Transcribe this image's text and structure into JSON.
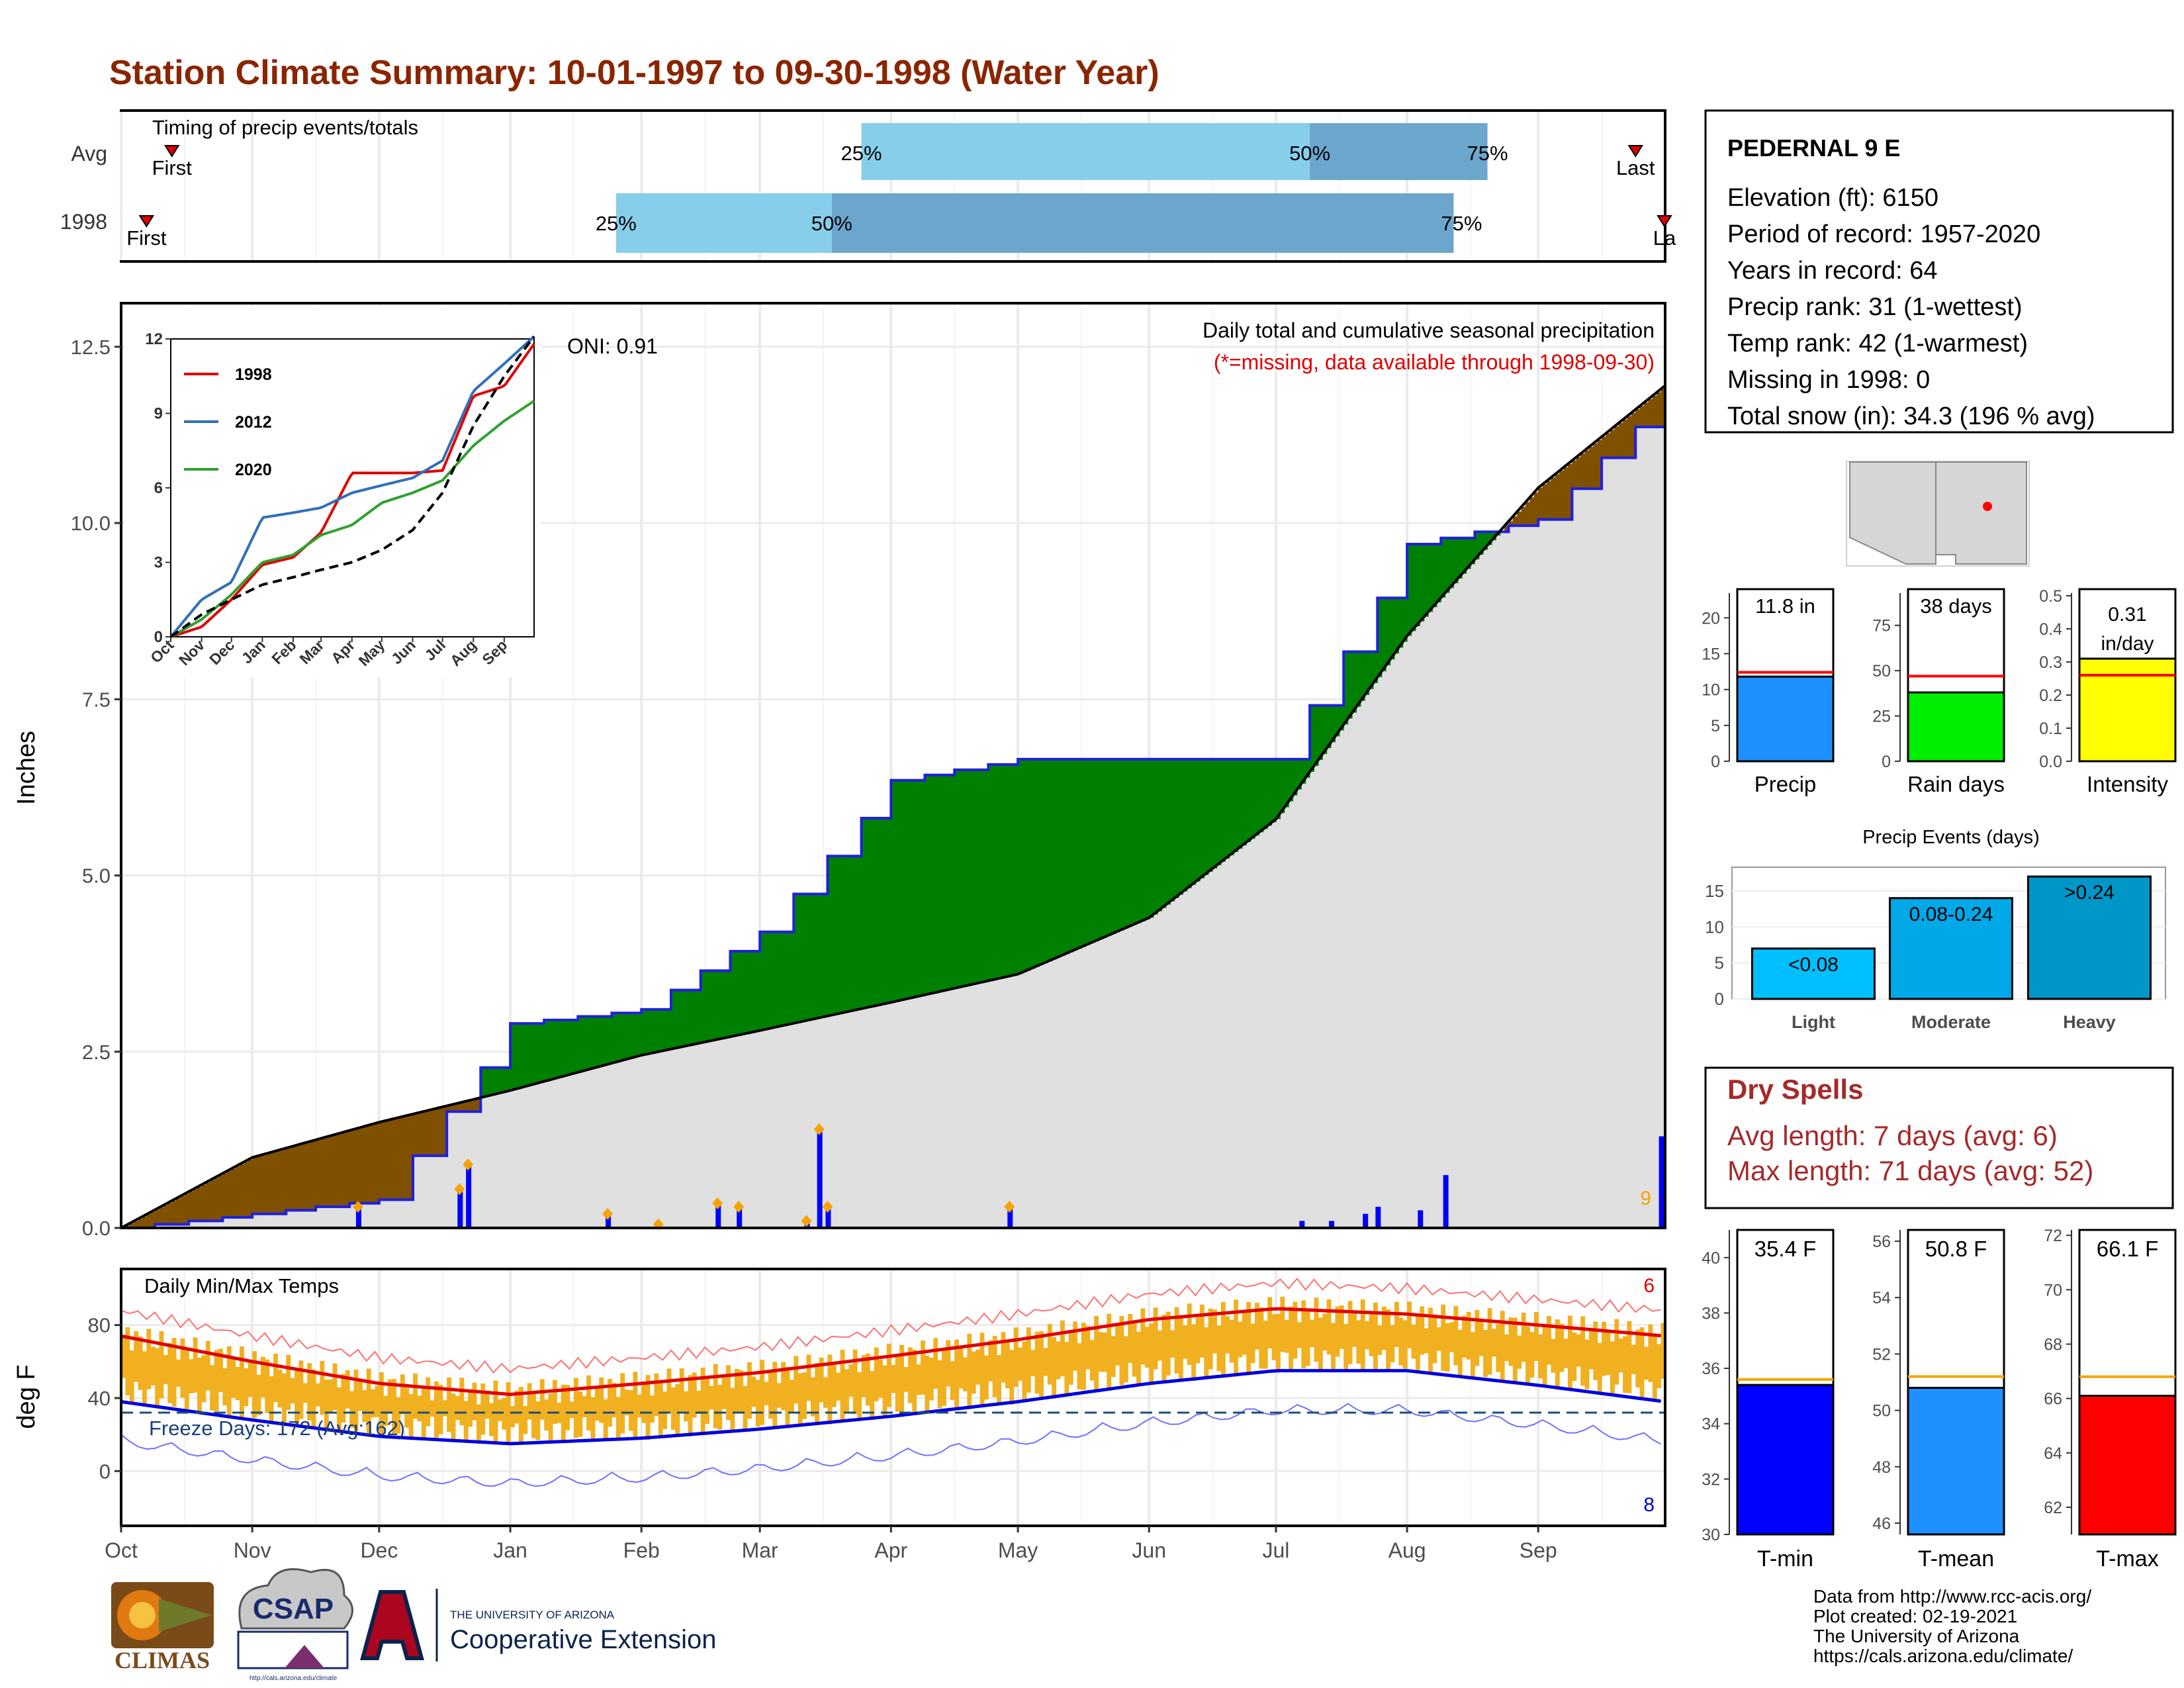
{
  "title": "Station Climate Summary: 10-01-1997 to 09-30-1998 (Water Year)",
  "colors": {
    "title": "#8B2500",
    "brown": "#7F5000",
    "green": "#008000",
    "cum_gray": "#E0E0E0",
    "blue": "#1F1FE0",
    "orange": "#F5A300",
    "light_blue": "#87CEEB",
    "mid_blue": "#6CA6CD",
    "temp_bar": "#F0B020",
    "red": "#E00000",
    "dark_red": "#A52A2A"
  },
  "timing_panel": {
    "title": "Timing of precip events/totals",
    "rows": [
      {
        "label": "Avg",
        "first_label": "First",
        "last_label": "Last",
        "p25": "25%",
        "p50": "50%",
        "p75": "75%",
        "first_doy": 12,
        "last_doy": 358,
        "p25_doy": 175,
        "p50_doy": 281,
        "p75_doy": 323
      },
      {
        "label": "1998",
        "first_label": "First",
        "last_label": "La",
        "p25": "25%",
        "p50": "50%",
        "p75": "75%",
        "first_doy": 6,
        "last_doy": 365,
        "p25_doy": 117,
        "p50_doy": 168,
        "p75_doy": 315
      }
    ]
  },
  "precip_panel": {
    "ylabel": "Inches",
    "note1": "Daily total and cumulative seasonal precipitation",
    "note2": "(*=missing, data available through 1998-09-30)",
    "oni": "ONI: 0.91",
    "top_count": "9",
    "yticks": [
      "0.0",
      "2.5",
      "5.0",
      "7.5",
      "10.0",
      "12.5"
    ]
  },
  "inset": {
    "legend": [
      "1998",
      "2012",
      "2020"
    ],
    "yticks": [
      "0",
      "3",
      "6",
      "9",
      "12"
    ],
    "xticks": [
      "Oct",
      "Nov",
      "Dec",
      "Jan",
      "Feb",
      "Mar",
      "Apr",
      "May",
      "Jun",
      "Jul",
      "Aug",
      "Sep"
    ]
  },
  "temp_panel": {
    "ylabel": "deg F",
    "title": "Daily Min/Max Temps",
    "freeze": "Freeze Days: 172 (Avg:162)",
    "max_count": "6",
    "min_count": "8",
    "yticks": [
      "0",
      "40",
      "80"
    ]
  },
  "months": [
    "Oct",
    "Nov",
    "Dec",
    "Jan",
    "Feb",
    "Mar",
    "Apr",
    "May",
    "Jun",
    "Jul",
    "Aug",
    "Sep"
  ],
  "station": {
    "name": "PEDERNAL 9 E",
    "lines": [
      "Elevation (ft): 6150",
      "Period of record: 1957-2020",
      "Years in record: 64",
      "Precip rank: 31 (1-wettest)",
      "Temp rank: 42 (1-warmest)",
      "Missing in 1998: 0",
      "Total snow (in): 34.3 (196 % avg)"
    ]
  },
  "summary_bars": [
    {
      "label": "Precip",
      "value_text": "11.8 in",
      "value": 11.8,
      "avg": 12.4,
      "ymax": 24,
      "yticks": [
        "0",
        "5",
        "10",
        "15",
        "20"
      ],
      "tickvals": [
        0,
        5,
        10,
        15,
        20
      ],
      "color": "#1E90FF"
    },
    {
      "label": "Rain days",
      "value_text": "38 days",
      "value": 38,
      "avg": 47,
      "ymax": 95,
      "yticks": [
        "0",
        "25",
        "50",
        "75"
      ],
      "tickvals": [
        0,
        25,
        50,
        75
      ],
      "color": "#00EE00"
    },
    {
      "label": "Intensity",
      "value_text": "0.31 in/day",
      "value": 0.31,
      "avg": 0.26,
      "ymax": 0.52,
      "yticks": [
        "0.0",
        "0.1",
        "0.2",
        "0.3",
        "0.4",
        "0.5"
      ],
      "tickvals": [
        0,
        0.1,
        0.2,
        0.3,
        0.4,
        0.5
      ],
      "color": "#FFFF00"
    }
  ],
  "events": {
    "title": "Precip Events (days)",
    "bars": [
      {
        "label": "Light",
        "range": "<0.08",
        "value": 7,
        "color": "#00BFFF"
      },
      {
        "label": "Moderate",
        "range": "0.08-0.24",
        "value": 14,
        "color": "#00A8E8"
      },
      {
        "label": "Heavy",
        "range": ">0.24",
        "value": 17,
        "color": "#0096C8"
      }
    ],
    "yticks": [
      "0",
      "5",
      "10",
      "15"
    ]
  },
  "dry_spells": {
    "title": "Dry Spells",
    "avg": "Avg length: 7 days (avg: 6)",
    "max": "Max length: 71 days (avg: 52)"
  },
  "temp_bars": [
    {
      "label": "T-min",
      "value_text": "35.4 F",
      "value": 35.4,
      "avg": 35.6,
      "ymin": 30,
      "ymax": 41,
      "tickvals": [
        30,
        32,
        34,
        36,
        38,
        40
      ],
      "color": "#0000FF"
    },
    {
      "label": "T-mean",
      "value_text": "50.8 F",
      "value": 50.8,
      "avg": 51.2,
      "ymin": 45.6,
      "ymax": 56.4,
      "tickvals": [
        46,
        48,
        50,
        52,
        54,
        56
      ],
      "color": "#1E90FF"
    },
    {
      "label": "T-max",
      "value_text": "66.1 F",
      "value": 66.1,
      "avg": 66.8,
      "ymin": 61,
      "ymax": 72.2,
      "tickvals": [
        62,
        64,
        66,
        68,
        70,
        72
      ],
      "color": "#FF0000"
    }
  ],
  "footer": {
    "lines": [
      "Data from http://www.rcc-acis.org/",
      "Plot created: 02-19-2021",
      "The University of Arizona",
      "https://cals.arizona.edu/climate/"
    ],
    "climas": "CLIMAS",
    "csap": "CSAP",
    "csap_url": "http://cals.arizona.edu/climate",
    "ua_small": "THE UNIVERSITY OF ARIZONA",
    "ua_big": "Cooperative Extension"
  },
  "chart_data": {
    "type": "area",
    "title": "Daily total and cumulative seasonal precipitation",
    "ylabel": "Inches",
    "ylim": [
      0,
      13.1
    ],
    "x_dates": [
      "1997-10-01",
      "1997-11-01",
      "1997-12-01",
      "1998-01-01",
      "1998-02-01",
      "1998-03-01",
      "1998-04-01",
      "1998-05-01",
      "1998-06-01",
      "1998-07-01",
      "1998-08-01",
      "1998-09-01",
      "1998-09-30"
    ],
    "series": [
      {
        "name": "1998",
        "values": [
          0.0,
          0.2,
          0.4,
          2.9,
          3.1,
          4.2,
          6.35,
          6.65,
          6.65,
          6.65,
          9.7,
          10.05,
          11.8
        ]
      },
      {
        "name": "",
        "values": [
          0.0,
          1.0,
          1.5,
          1.95,
          2.45,
          2.8,
          3.2,
          3.6,
          4.4,
          5.8,
          8.4,
          10.5,
          11.95
        ]
      }
    ],
    "daily_events": [
      {
        "date": "1997-11-26",
        "in": 0.3
      },
      {
        "date": "1997-12-20",
        "in": 0.55
      },
      {
        "date": "1997-12-22",
        "in": 0.9
      },
      {
        "date": "1998-01-24",
        "in": 0.2
      },
      {
        "date": "1998-02-05",
        "in": 0.05
      },
      {
        "date": "1998-02-19",
        "in": 0.35
      },
      {
        "date": "1998-02-24",
        "in": 0.3
      },
      {
        "date": "1998-03-12",
        "in": 0.1
      },
      {
        "date": "1998-03-15",
        "in": 1.4
      },
      {
        "date": "1998-03-17",
        "in": 0.3
      },
      {
        "date": "1998-04-29",
        "in": 0.3
      },
      {
        "date": "1998-07-07",
        "in": 0.1
      },
      {
        "date": "1998-07-14",
        "in": 0.1
      },
      {
        "date": "1998-07-22",
        "in": 0.2
      },
      {
        "date": "1998-07-25",
        "in": 0.3
      },
      {
        "date": "1998-08-04",
        "in": 0.25
      },
      {
        "date": "1998-08-10",
        "in": 0.75
      },
      {
        "date": "1998-09-30",
        "in": 1.3
      }
    ],
    "inset": {
      "type": "line",
      "ylim": [
        0,
        12
      ],
      "series": [
        {
          "name": "1998",
          "values": [
            0,
            0.4,
            1.5,
            2.9,
            3.2,
            4.2,
            6.6,
            6.6,
            6.6,
            6.7,
            9.7,
            10.1,
            11.8
          ]
        },
        {
          "name": "2012",
          "values": [
            0,
            1.5,
            2.2,
            4.8,
            5.0,
            5.2,
            5.8,
            6.1,
            6.4,
            7.1,
            9.9,
            11.0,
            12.1
          ]
        },
        {
          "name": "2020",
          "values": [
            0,
            0.7,
            1.7,
            3.0,
            3.3,
            4.1,
            4.5,
            5.4,
            5.8,
            6.3,
            7.7,
            8.7,
            9.5
          ]
        },
        {
          "name": "",
          "values": [
            0,
            0.9,
            1.5,
            2.1,
            2.4,
            2.7,
            3.0,
            3.5,
            4.3,
            5.8,
            8.5,
            10.5,
            12.1
          ]
        }
      ]
    },
    "temps": {
      "ylim": [
        -30,
        110
      ],
      "months": [
        "Oct",
        "Nov",
        "Dec",
        "Jan",
        "Feb",
        "Mar",
        "Apr",
        "May",
        "Jun",
        "Jul",
        "Aug",
        "Sep"
      ],
      "avg_max": [
        74,
        60,
        48,
        42,
        48,
        54,
        63,
        72,
        83,
        89,
        86,
        80
      ],
      "avg_min": [
        38,
        28,
        19,
        15,
        18,
        23,
        30,
        38,
        48,
        55,
        55,
        47
      ],
      "freeze_line": 32
    }
  }
}
